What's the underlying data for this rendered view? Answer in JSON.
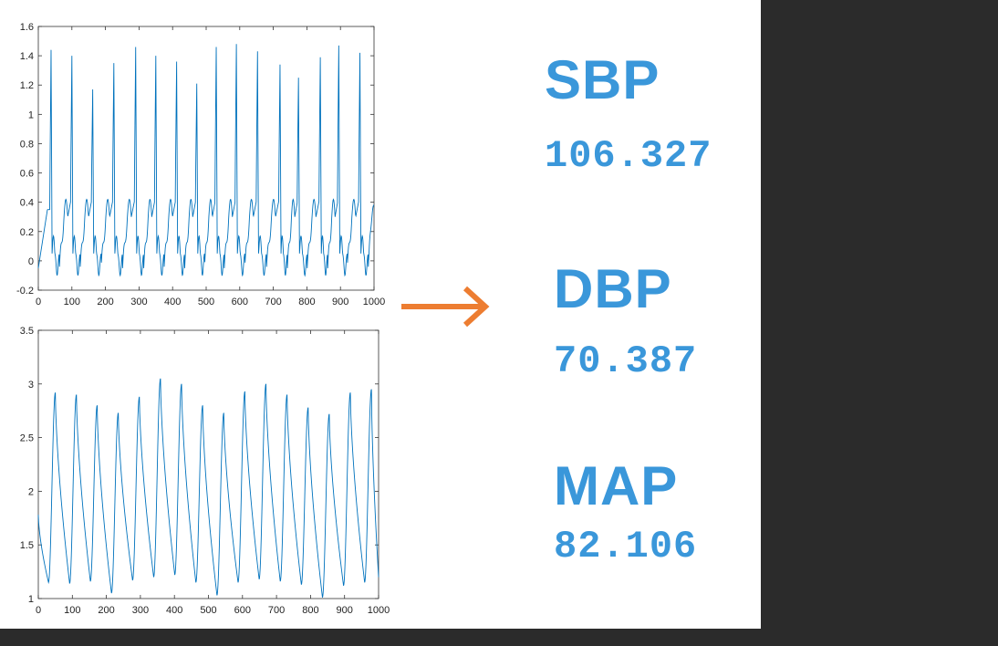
{
  "colors": {
    "series": "#0072bd",
    "arrow": "#ed7d31",
    "metric": "#3a97da",
    "axis": "#333333"
  },
  "metrics": [
    {
      "label": "SBP",
      "value": "106.327"
    },
    {
      "label": "DBP",
      "value": "70.387"
    },
    {
      "label": "MAP",
      "value": "82.106"
    }
  ],
  "chart_data": [
    {
      "type": "line",
      "title": "",
      "xlabel": "",
      "ylabel": "",
      "xlim": [
        0,
        1000
      ],
      "ylim": [
        -0.2,
        1.6
      ],
      "xticks": [
        "0",
        "100",
        "200",
        "300",
        "400",
        "500",
        "600",
        "700",
        "800",
        "900",
        "1000"
      ],
      "yticks": [
        "-0.2",
        "0",
        "0.2",
        "0.4",
        "0.6",
        "0.8",
        "1",
        "1.2",
        "1.4",
        "1.6"
      ],
      "grid": false,
      "series": [
        {
          "peaks": [
            {
              "x": 38,
              "y": 1.44
            },
            {
              "x": 100,
              "y": 1.4
            },
            {
              "x": 162,
              "y": 1.17
            },
            {
              "x": 225,
              "y": 1.35
            },
            {
              "x": 290,
              "y": 1.46
            },
            {
              "x": 350,
              "y": 1.4
            },
            {
              "x": 412,
              "y": 1.36
            },
            {
              "x": 472,
              "y": 1.21
            },
            {
              "x": 530,
              "y": 1.46
            },
            {
              "x": 590,
              "y": 1.48
            },
            {
              "x": 653,
              "y": 1.43
            },
            {
              "x": 720,
              "y": 1.34
            },
            {
              "x": 775,
              "y": 1.25
            },
            {
              "x": 840,
              "y": 1.39
            },
            {
              "x": 895,
              "y": 1.47
            },
            {
              "x": 958,
              "y": 1.42
            }
          ],
          "start_value": -0.05,
          "end_value": 0.38
        }
      ]
    },
    {
      "type": "line",
      "title": "",
      "xlabel": "",
      "ylabel": "",
      "xlim": [
        0,
        1000
      ],
      "ylim": [
        1,
        3.5
      ],
      "xticks": [
        "0",
        "100",
        "200",
        "300",
        "400",
        "500",
        "600",
        "700",
        "800",
        "900",
        "1000"
      ],
      "yticks": [
        "1",
        "1.5",
        "2",
        "2.5",
        "3",
        "3.5"
      ],
      "grid": false,
      "series": [
        {
          "peaks": [
            {
              "x": 50,
              "y": 2.92
            },
            {
              "x": 112,
              "y": 2.9
            },
            {
              "x": 173,
              "y": 2.8
            },
            {
              "x": 235,
              "y": 2.73
            },
            {
              "x": 297,
              "y": 2.88
            },
            {
              "x": 359,
              "y": 3.05
            },
            {
              "x": 421,
              "y": 3.0
            },
            {
              "x": 483,
              "y": 2.8
            },
            {
              "x": 545,
              "y": 2.73
            },
            {
              "x": 607,
              "y": 2.93
            },
            {
              "x": 669,
              "y": 3.0
            },
            {
              "x": 731,
              "y": 2.9
            },
            {
              "x": 793,
              "y": 2.78
            },
            {
              "x": 855,
              "y": 2.72
            },
            {
              "x": 917,
              "y": 2.92
            },
            {
              "x": 979,
              "y": 2.95
            }
          ],
          "troughs": [
            {
              "x": 30,
              "y": 1.15
            },
            {
              "x": 92,
              "y": 1.14
            },
            {
              "x": 153,
              "y": 1.16
            },
            {
              "x": 215,
              "y": 1.05
            },
            {
              "x": 277,
              "y": 1.17
            },
            {
              "x": 339,
              "y": 1.2
            },
            {
              "x": 401,
              "y": 1.22
            },
            {
              "x": 463,
              "y": 1.15
            },
            {
              "x": 525,
              "y": 1.03
            },
            {
              "x": 587,
              "y": 1.15
            },
            {
              "x": 649,
              "y": 1.18
            },
            {
              "x": 711,
              "y": 1.16
            },
            {
              "x": 773,
              "y": 1.13
            },
            {
              "x": 835,
              "y": 1.01
            },
            {
              "x": 897,
              "y": 1.12
            },
            {
              "x": 959,
              "y": 1.15
            }
          ],
          "start_value": 1.78,
          "end_value": 1.2
        }
      ]
    }
  ]
}
